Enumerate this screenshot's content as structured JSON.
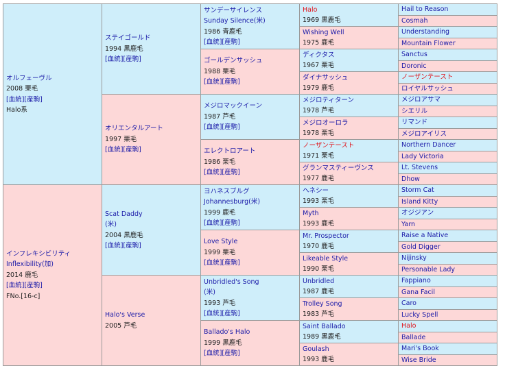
{
  "gen1": [
    {
      "lines": [
        "オルフェーヴル"
      ],
      "info": "2008 栗毛",
      "links": "[血統][産駒]",
      "extra": "Halo系",
      "sex": "m"
    },
    {
      "lines": [
        "インフレキシビリティ",
        "Inflexibility(加)"
      ],
      "info": "2014 鹿毛",
      "links": "[血統][産駒]",
      "extra": "FNo.[16-c]",
      "sex": "f"
    }
  ],
  "gen2": [
    {
      "lines": [
        "ステイゴールド"
      ],
      "info": "1994 黒鹿毛",
      "links": "[血統][産駒]",
      "sex": "m"
    },
    {
      "lines": [
        "オリエンタルアート"
      ],
      "info": "1997 栗毛",
      "links": "[血統][産駒]",
      "sex": "f"
    },
    {
      "lines": [
        "Scat Daddy",
        "(米)"
      ],
      "info": "2004 黒鹿毛",
      "links": "[血統][産駒]",
      "sex": "m"
    },
    {
      "lines": [
        "Halo's Verse"
      ],
      "info": "2005 芦毛",
      "links": "",
      "sex": "f"
    }
  ],
  "gen3": [
    {
      "lines": [
        "サンデーサイレンス",
        "Sunday Silence(米)"
      ],
      "info": "1986 青鹿毛",
      "links": "[血統][産駒]",
      "sex": "m"
    },
    {
      "lines": [
        "ゴールデンサッシュ"
      ],
      "info": "1988 栗毛",
      "links": "[血統][産駒]",
      "sex": "f"
    },
    {
      "lines": [
        "メジロマックイーン"
      ],
      "info": "1987 芦毛",
      "links": "[血統][産駒]",
      "sex": "m"
    },
    {
      "lines": [
        "エレクトロアート"
      ],
      "info": "1986 栗毛",
      "links": "[血統][産駒]",
      "sex": "f"
    },
    {
      "lines": [
        "ヨハネスブルグ",
        "Johannesburg(米)"
      ],
      "info": "1999 鹿毛",
      "links": "[血統][産駒]",
      "sex": "m"
    },
    {
      "lines": [
        "Love Style"
      ],
      "info": "1999 栗毛",
      "links": "[血統][産駒]",
      "sex": "f"
    },
    {
      "lines": [
        "Unbridled's Song",
        "(米)"
      ],
      "info": "1993 芦毛",
      "links": "[血統][産駒]",
      "sex": "m"
    },
    {
      "lines": [
        "Ballado's Halo"
      ],
      "info": "1999 黒鹿毛",
      "links": "[血統][産駒]",
      "sex": "f"
    }
  ],
  "gen4": [
    {
      "name": "Halo",
      "info": "1969 黒鹿毛",
      "sex": "m",
      "red": true
    },
    {
      "name": "Wishing Well",
      "info": "1975 鹿毛",
      "sex": "f",
      "red": false
    },
    {
      "name": "ディクタス",
      "info": "1967 栗毛",
      "sex": "m",
      "red": false
    },
    {
      "name": "ダイナサッシュ",
      "info": "1979 鹿毛",
      "sex": "f",
      "red": false
    },
    {
      "name": "メジロティターン",
      "info": "1978 芦毛",
      "sex": "m",
      "red": false
    },
    {
      "name": "メジロオーロラ",
      "info": "1978 栗毛",
      "sex": "f",
      "red": false
    },
    {
      "name": "ノーザンテースト",
      "info": "1971 栗毛",
      "sex": "m",
      "red": true
    },
    {
      "name": "グランマスティーヴンス",
      "info": "1977 鹿毛",
      "sex": "f",
      "red": false
    },
    {
      "name": "ヘネシー",
      "info": "1993 栗毛",
      "sex": "m",
      "red": false
    },
    {
      "name": "Myth",
      "info": "1993 鹿毛",
      "sex": "f",
      "red": false
    },
    {
      "name": "Mr. Prospector",
      "info": "1970 鹿毛",
      "sex": "m",
      "red": false
    },
    {
      "name": "Likeable Style",
      "info": "1990 栗毛",
      "sex": "f",
      "red": false
    },
    {
      "name": "Unbridled",
      "info": "1987 鹿毛",
      "sex": "m",
      "red": false
    },
    {
      "name": "Trolley Song",
      "info": "1983 芦毛",
      "sex": "f",
      "red": false
    },
    {
      "name": "Saint Ballado",
      "info": "1989 黒鹿毛",
      "sex": "m",
      "red": false
    },
    {
      "name": "Goulash",
      "info": "1993 鹿毛",
      "sex": "f",
      "red": false
    }
  ],
  "gen5": [
    {
      "name": "Hail to Reason",
      "sex": "m",
      "red": false
    },
    {
      "name": "Cosmah",
      "sex": "f",
      "red": false
    },
    {
      "name": "Understanding",
      "sex": "m",
      "red": false
    },
    {
      "name": "Mountain Flower",
      "sex": "f",
      "red": false
    },
    {
      "name": "Sanctus",
      "sex": "m",
      "red": false
    },
    {
      "name": "Doronic",
      "sex": "f",
      "red": false
    },
    {
      "name": "ノーザンテースト",
      "sex": "m",
      "red": true
    },
    {
      "name": "ロイヤルサッシュ",
      "sex": "f",
      "red": false
    },
    {
      "name": "メジロアサマ",
      "sex": "m",
      "red": false
    },
    {
      "name": "シエリル",
      "sex": "f",
      "red": false
    },
    {
      "name": "リマンド",
      "sex": "m",
      "red": false
    },
    {
      "name": "メジロアイリス",
      "sex": "f",
      "red": false
    },
    {
      "name": "Northern Dancer",
      "sex": "m",
      "red": false
    },
    {
      "name": "Lady Victoria",
      "sex": "f",
      "red": false
    },
    {
      "name": "Lt. Stevens",
      "sex": "m",
      "red": false
    },
    {
      "name": "Dhow",
      "sex": "f",
      "red": false
    },
    {
      "name": "Storm Cat",
      "sex": "m",
      "red": false
    },
    {
      "name": "Island Kitty",
      "sex": "f",
      "red": false
    },
    {
      "name": "オジジアン",
      "sex": "m",
      "red": false
    },
    {
      "name": "Yarn",
      "sex": "f",
      "red": false
    },
    {
      "name": "Raise a Native",
      "sex": "m",
      "red": false
    },
    {
      "name": "Gold Digger",
      "sex": "f",
      "red": false
    },
    {
      "name": "Nijinsky",
      "sex": "m",
      "red": false
    },
    {
      "name": "Personable Lady",
      "sex": "f",
      "red": false
    },
    {
      "name": "Fappiano",
      "sex": "m",
      "red": false
    },
    {
      "name": "Gana Facil",
      "sex": "f",
      "red": false
    },
    {
      "name": "Caro",
      "sex": "m",
      "red": false
    },
    {
      "name": "Lucky Spell",
      "sex": "f",
      "red": false
    },
    {
      "name": "Halo",
      "sex": "m",
      "red": true
    },
    {
      "name": "Ballade",
      "sex": "f",
      "red": false
    },
    {
      "name": "Mari's Book",
      "sex": "m",
      "red": false
    },
    {
      "name": "Wise Bride",
      "sex": "f",
      "red": false
    }
  ],
  "colors": {
    "sire_bg": "#cfeefa",
    "dam_bg": "#fdd8d8",
    "link": "#1a1aa8",
    "highlight": "#e0151c",
    "border": "#9a9a9a"
  }
}
